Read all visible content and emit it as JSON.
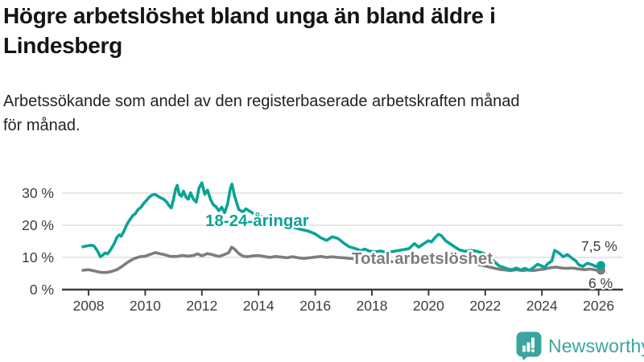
{
  "header": {
    "title_lines": [
      "Högre arbetslöshet bland unga än bland äldre i",
      "Lindesberg"
    ],
    "subtitle_lines": [
      "Arbetssökande som andel av den registerbaserade arbetskraften månad",
      "för månad."
    ]
  },
  "branding": {
    "logo_text": "Newsworthy",
    "logo_icon": "bar-chart-speech-bubble",
    "brand_color": "#3aa59e"
  },
  "chart_data": {
    "type": "line",
    "title": "Arbetssökande som andel av den registerbaserade arbetskraften månad för månad",
    "unit": "%",
    "grid": true,
    "x_axis": {
      "ticks": [
        2008,
        2010,
        2012,
        2014,
        2016,
        2018,
        2020,
        2022,
        2024,
        2026
      ],
      "range": [
        2007.1,
        2026.9
      ]
    },
    "y_axis": {
      "ticks": [
        {
          "v": 0,
          "label": "0 %"
        },
        {
          "v": 10,
          "label": "10 %"
        },
        {
          "v": 20,
          "label": "20 %"
        },
        {
          "v": 30,
          "label": "30 %"
        }
      ],
      "range": [
        0,
        34
      ]
    },
    "colors": {
      "axis": "#3d3d3d",
      "gridline": "#d8d8d8"
    },
    "series": [
      {
        "name": "18-24-åringar",
        "color": "#0aa396",
        "end_label": "7,5 %",
        "end_value": 7.5,
        "points": [
          [
            2007.8,
            13.3
          ],
          [
            2007.95,
            13.6
          ],
          [
            2008.1,
            13.8
          ],
          [
            2008.2,
            13.5
          ],
          [
            2008.3,
            12.2
          ],
          [
            2008.42,
            10.2
          ],
          [
            2008.5,
            10.7
          ],
          [
            2008.58,
            11.4
          ],
          [
            2008.67,
            11.1
          ],
          [
            2008.75,
            12.0
          ],
          [
            2008.9,
            14.2
          ],
          [
            2009.0,
            16.2
          ],
          [
            2009.08,
            17.0
          ],
          [
            2009.15,
            16.6
          ],
          [
            2009.25,
            18.2
          ],
          [
            2009.35,
            20.2
          ],
          [
            2009.45,
            21.6
          ],
          [
            2009.55,
            22.9
          ],
          [
            2009.65,
            23.6
          ],
          [
            2009.75,
            24.9
          ],
          [
            2009.85,
            25.6
          ],
          [
            2009.95,
            26.8
          ],
          [
            2010.05,
            27.8
          ],
          [
            2010.15,
            28.8
          ],
          [
            2010.25,
            29.4
          ],
          [
            2010.35,
            29.6
          ],
          [
            2010.45,
            29.0
          ],
          [
            2010.55,
            28.5
          ],
          [
            2010.65,
            28.1
          ],
          [
            2010.75,
            27.3
          ],
          [
            2010.85,
            26.0
          ],
          [
            2010.92,
            25.4
          ],
          [
            2011.0,
            28.2
          ],
          [
            2011.07,
            31.2
          ],
          [
            2011.13,
            32.4
          ],
          [
            2011.2,
            29.6
          ],
          [
            2011.28,
            29.0
          ],
          [
            2011.35,
            30.6
          ],
          [
            2011.45,
            28.6
          ],
          [
            2011.52,
            28.1
          ],
          [
            2011.6,
            30.1
          ],
          [
            2011.7,
            28.1
          ],
          [
            2011.8,
            27.2
          ],
          [
            2011.9,
            31.6
          ],
          [
            2012.0,
            33.2
          ],
          [
            2012.1,
            29.6
          ],
          [
            2012.2,
            30.9
          ],
          [
            2012.3,
            28.1
          ],
          [
            2012.4,
            26.4
          ],
          [
            2012.5,
            25.7
          ],
          [
            2012.6,
            24.5
          ],
          [
            2012.7,
            25.6
          ],
          [
            2012.8,
            23.9
          ],
          [
            2012.9,
            26.4
          ],
          [
            2013.0,
            31.2
          ],
          [
            2013.06,
            32.8
          ],
          [
            2013.15,
            29.2
          ],
          [
            2013.3,
            24.9
          ],
          [
            2013.45,
            24.1
          ],
          [
            2013.55,
            25.1
          ],
          [
            2013.7,
            24.3
          ],
          [
            2013.85,
            23.5
          ],
          [
            2014.0,
            23.1
          ],
          [
            2014.2,
            22.5
          ],
          [
            2014.4,
            21.7
          ],
          [
            2014.6,
            21.1
          ],
          [
            2014.8,
            20.5
          ],
          [
            2015.0,
            20.0
          ],
          [
            2015.2,
            19.4
          ],
          [
            2015.5,
            18.7
          ],
          [
            2015.75,
            18.2
          ],
          [
            2016.0,
            17.3
          ],
          [
            2016.2,
            16.1
          ],
          [
            2016.4,
            15.3
          ],
          [
            2016.6,
            16.4
          ],
          [
            2016.8,
            15.9
          ],
          [
            2017.0,
            14.5
          ],
          [
            2017.2,
            13.3
          ],
          [
            2017.4,
            12.8
          ],
          [
            2017.6,
            12.1
          ],
          [
            2017.75,
            12.6
          ],
          [
            2017.9,
            12.0
          ],
          [
            2018.1,
            11.7
          ],
          [
            2018.3,
            12.0
          ],
          [
            2018.5,
            11.6
          ],
          [
            2018.7,
            11.8
          ],
          [
            2018.9,
            12.1
          ],
          [
            2019.1,
            12.4
          ],
          [
            2019.3,
            12.7
          ],
          [
            2019.5,
            14.3
          ],
          [
            2019.65,
            13.2
          ],
          [
            2019.8,
            14.1
          ],
          [
            2020.0,
            15.2
          ],
          [
            2020.1,
            14.8
          ],
          [
            2020.25,
            16.4
          ],
          [
            2020.35,
            17.2
          ],
          [
            2020.45,
            16.8
          ],
          [
            2020.6,
            15.2
          ],
          [
            2020.8,
            14.0
          ],
          [
            2020.95,
            13.1
          ],
          [
            2021.1,
            12.3
          ],
          [
            2021.3,
            11.9
          ],
          [
            2021.5,
            12.2
          ],
          [
            2021.7,
            11.9
          ],
          [
            2021.9,
            11.4
          ],
          [
            2022.1,
            10.4
          ],
          [
            2022.3,
            8.8
          ],
          [
            2022.5,
            7.3
          ],
          [
            2022.65,
            6.9
          ],
          [
            2022.8,
            6.4
          ],
          [
            2022.95,
            6.2
          ],
          [
            2023.1,
            6.7
          ],
          [
            2023.25,
            6.1
          ],
          [
            2023.4,
            6.6
          ],
          [
            2023.55,
            6.0
          ],
          [
            2023.7,
            6.8
          ],
          [
            2023.85,
            7.9
          ],
          [
            2024.0,
            7.3
          ],
          [
            2024.1,
            6.9
          ],
          [
            2024.2,
            8.0
          ],
          [
            2024.35,
            8.9
          ],
          [
            2024.45,
            12.2
          ],
          [
            2024.6,
            11.4
          ],
          [
            2024.75,
            10.2
          ],
          [
            2024.9,
            10.9
          ],
          [
            2025.05,
            9.8
          ],
          [
            2025.2,
            8.9
          ],
          [
            2025.3,
            7.7
          ],
          [
            2025.45,
            7.2
          ],
          [
            2025.6,
            8.2
          ],
          [
            2025.75,
            7.8
          ],
          [
            2025.9,
            7.2
          ],
          [
            2026.08,
            7.5
          ]
        ]
      },
      {
        "name": "Total arbetslöshet",
        "color": "#7d7d7d",
        "end_label": "6 %",
        "end_value": 6.0,
        "points": [
          [
            2007.8,
            6.0
          ],
          [
            2008.0,
            6.2
          ],
          [
            2008.2,
            5.8
          ],
          [
            2008.4,
            5.4
          ],
          [
            2008.6,
            5.3
          ],
          [
            2008.8,
            5.6
          ],
          [
            2009.0,
            6.2
          ],
          [
            2009.2,
            7.3
          ],
          [
            2009.4,
            8.6
          ],
          [
            2009.6,
            9.6
          ],
          [
            2009.8,
            10.2
          ],
          [
            2010.0,
            10.4
          ],
          [
            2010.2,
            11.0
          ],
          [
            2010.35,
            11.5
          ],
          [
            2010.5,
            11.2
          ],
          [
            2010.7,
            10.8
          ],
          [
            2010.9,
            10.3
          ],
          [
            2011.1,
            10.3
          ],
          [
            2011.3,
            10.6
          ],
          [
            2011.5,
            10.4
          ],
          [
            2011.7,
            10.6
          ],
          [
            2011.85,
            11.1
          ],
          [
            2012.0,
            10.5
          ],
          [
            2012.2,
            11.2
          ],
          [
            2012.4,
            10.8
          ],
          [
            2012.6,
            10.3
          ],
          [
            2012.8,
            10.9
          ],
          [
            2012.95,
            11.5
          ],
          [
            2013.05,
            13.2
          ],
          [
            2013.15,
            12.6
          ],
          [
            2013.3,
            11.2
          ],
          [
            2013.45,
            10.4
          ],
          [
            2013.6,
            10.2
          ],
          [
            2013.8,
            10.5
          ],
          [
            2014.0,
            10.6
          ],
          [
            2014.2,
            10.3
          ],
          [
            2014.4,
            10.0
          ],
          [
            2014.6,
            10.3
          ],
          [
            2014.8,
            10.1
          ],
          [
            2015.0,
            9.9
          ],
          [
            2015.2,
            10.2
          ],
          [
            2015.4,
            9.9
          ],
          [
            2015.6,
            9.7
          ],
          [
            2015.8,
            9.9
          ],
          [
            2016.0,
            10.1
          ],
          [
            2016.2,
            10.3
          ],
          [
            2016.4,
            10.0
          ],
          [
            2016.6,
            10.2
          ],
          [
            2016.8,
            10.0
          ],
          [
            2017.0,
            9.9
          ],
          [
            2017.2,
            9.7
          ],
          [
            2017.4,
            9.6
          ],
          [
            2017.7,
            9.4
          ],
          [
            2018.0,
            9.1
          ],
          [
            2018.3,
            8.9
          ],
          [
            2018.6,
            8.7
          ],
          [
            2019.0,
            8.6
          ],
          [
            2019.4,
            8.8
          ],
          [
            2019.8,
            9.2
          ],
          [
            2020.2,
            9.8
          ],
          [
            2020.5,
            10.0
          ],
          [
            2020.8,
            9.6
          ],
          [
            2021.1,
            9.0
          ],
          [
            2021.4,
            8.4
          ],
          [
            2021.7,
            7.9
          ],
          [
            2022.0,
            7.3
          ],
          [
            2022.3,
            6.7
          ],
          [
            2022.5,
            6.3
          ],
          [
            2022.7,
            6.1
          ],
          [
            2022.9,
            5.9
          ],
          [
            2023.1,
            6.2
          ],
          [
            2023.3,
            5.9
          ],
          [
            2023.5,
            6.1
          ],
          [
            2023.7,
            5.9
          ],
          [
            2023.9,
            6.2
          ],
          [
            2024.1,
            6.4
          ],
          [
            2024.3,
            6.8
          ],
          [
            2024.5,
            7.0
          ],
          [
            2024.7,
            6.7
          ],
          [
            2024.9,
            6.6
          ],
          [
            2025.1,
            6.7
          ],
          [
            2025.3,
            6.4
          ],
          [
            2025.5,
            6.2
          ],
          [
            2025.7,
            6.4
          ],
          [
            2025.9,
            6.1
          ],
          [
            2026.08,
            6.0
          ]
        ]
      }
    ]
  }
}
